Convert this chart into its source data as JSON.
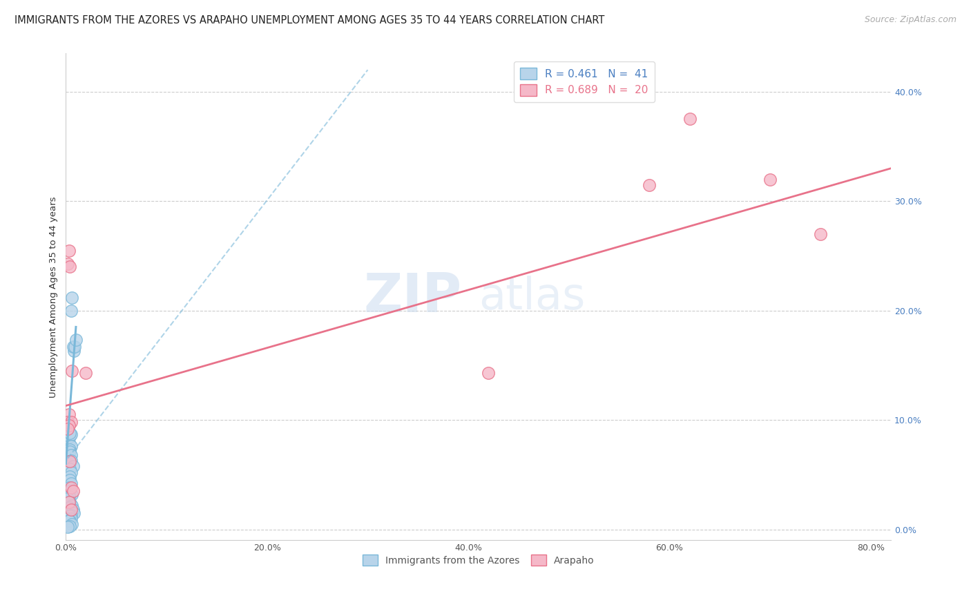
{
  "title": "IMMIGRANTS FROM THE AZORES VS ARAPAHO UNEMPLOYMENT AMONG AGES 35 TO 44 YEARS CORRELATION CHART",
  "source": "Source: ZipAtlas.com",
  "ylabel": "Unemployment Among Ages 35 to 44 years",
  "xlim": [
    0,
    0.82
  ],
  "ylim": [
    -0.01,
    0.435
  ],
  "xticks": [
    0.0,
    0.2,
    0.4,
    0.6,
    0.8
  ],
  "yticks": [
    0.0,
    0.1,
    0.2,
    0.3,
    0.4
  ],
  "grid_color": "#cccccc",
  "background_color": "#ffffff",
  "watermark_zip": "ZIP",
  "watermark_atlas": "atlas",
  "legend_r1": "R = 0.461   N =  41",
  "legend_r2": "R = 0.689   N =  20",
  "blue_color": "#7ab8d9",
  "pink_color": "#e8728a",
  "blue_fill": "#b8d4ea",
  "pink_fill": "#f5b8c8",
  "blue_scatter": [
    [
      0.008,
      0.163
    ],
    [
      0.007,
      0.167
    ],
    [
      0.009,
      0.167
    ],
    [
      0.01,
      0.173
    ],
    [
      0.005,
      0.2
    ],
    [
      0.006,
      0.212
    ],
    [
      0.003,
      0.079
    ],
    [
      0.004,
      0.085
    ],
    [
      0.005,
      0.087
    ],
    [
      0.004,
      0.088
    ],
    [
      0.005,
      0.076
    ],
    [
      0.004,
      0.073
    ],
    [
      0.004,
      0.071
    ],
    [
      0.005,
      0.068
    ],
    [
      0.004,
      0.062
    ],
    [
      0.005,
      0.063
    ],
    [
      0.007,
      0.058
    ],
    [
      0.004,
      0.055
    ],
    [
      0.005,
      0.052
    ],
    [
      0.004,
      0.048
    ],
    [
      0.004,
      0.045
    ],
    [
      0.005,
      0.042
    ],
    [
      0.003,
      0.038
    ],
    [
      0.004,
      0.035
    ],
    [
      0.006,
      0.032
    ],
    [
      0.003,
      0.03
    ],
    [
      0.002,
      0.028
    ],
    [
      0.004,
      0.025
    ],
    [
      0.006,
      0.022
    ],
    [
      0.003,
      0.02
    ],
    [
      0.007,
      0.018
    ],
    [
      0.008,
      0.015
    ],
    [
      0.005,
      0.013
    ],
    [
      0.004,
      0.012
    ],
    [
      0.002,
      0.01
    ],
    [
      0.005,
      0.01
    ],
    [
      0.004,
      0.008
    ],
    [
      0.003,
      0.008
    ],
    [
      0.006,
      0.005
    ],
    [
      0.004,
      0.003
    ],
    [
      0.002,
      0.002
    ]
  ],
  "pink_scatter": [
    [
      0.003,
      0.255
    ],
    [
      0.002,
      0.243
    ],
    [
      0.004,
      0.24
    ],
    [
      0.006,
      0.145
    ],
    [
      0.02,
      0.143
    ],
    [
      0.003,
      0.105
    ],
    [
      0.002,
      0.098
    ],
    [
      0.005,
      0.098
    ],
    [
      0.003,
      0.095
    ],
    [
      0.002,
      0.092
    ],
    [
      0.004,
      0.062
    ],
    [
      0.005,
      0.038
    ],
    [
      0.007,
      0.035
    ],
    [
      0.003,
      0.025
    ],
    [
      0.005,
      0.018
    ],
    [
      0.62,
      0.375
    ],
    [
      0.7,
      0.32
    ],
    [
      0.75,
      0.27
    ],
    [
      0.58,
      0.315
    ],
    [
      0.42,
      0.143
    ]
  ],
  "blue_solid_line_x": [
    0.0,
    0.01
  ],
  "blue_solid_line_y": [
    0.06,
    0.185
  ],
  "blue_dashed_line_x": [
    0.002,
    0.3
  ],
  "blue_dashed_line_y": [
    0.065,
    0.42
  ],
  "pink_line_x": [
    0.0,
    0.82
  ],
  "pink_line_y": [
    0.113,
    0.33
  ],
  "title_fontsize": 10.5,
  "source_fontsize": 9,
  "axis_label_fontsize": 9.5,
  "tick_fontsize": 9,
  "legend_fontsize": 11
}
